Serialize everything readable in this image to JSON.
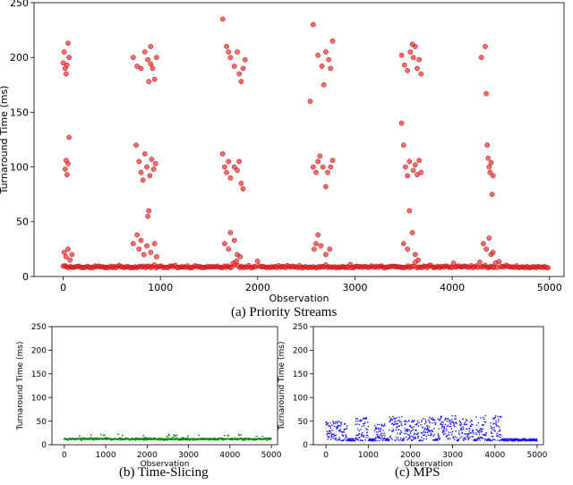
{
  "chart_data": [
    {
      "type": "scatter",
      "caption": "(a) Priority Streams",
      "xlabel": "Observation",
      "ylabel": "Turnaround Time (ms)",
      "xlim": [
        -300,
        5150
      ],
      "ylim": [
        0,
        250
      ],
      "xticks": [
        0,
        1000,
        2000,
        3000,
        4000,
        5000
      ],
      "yticks": [
        0,
        50,
        100,
        150,
        200,
        250
      ],
      "grid": false,
      "color": "#ff0000",
      "marker_style": "filled-circle-with-dark-edge",
      "series": [
        {
          "values_description_points": [
            [
              0,
              195
            ],
            [
              10,
              205
            ],
            [
              20,
              190
            ],
            [
              30,
              185
            ],
            [
              50,
              213
            ],
            [
              60,
              200
            ],
            [
              40,
              193
            ],
            [
              20,
              98
            ],
            [
              30,
              106
            ],
            [
              40,
              93
            ],
            [
              50,
              103
            ],
            [
              60,
              127
            ],
            [
              10,
              22
            ],
            [
              30,
              18
            ],
            [
              50,
              25
            ],
            [
              70,
              15
            ],
            [
              90,
              20
            ],
            [
              720,
              200
            ],
            [
              760,
              192
            ],
            [
              800,
              190
            ],
            [
              840,
              205
            ],
            [
              870,
              198
            ],
            [
              900,
              210
            ],
            [
              920,
              190
            ],
            [
              940,
              180
            ],
            [
              960,
              200
            ],
            [
              880,
              178
            ],
            [
              900,
              194
            ],
            [
              750,
              120
            ],
            [
              780,
              105
            ],
            [
              800,
              95
            ],
            [
              820,
              88
            ],
            [
              840,
              112
            ],
            [
              860,
              100
            ],
            [
              890,
              92
            ],
            [
              910,
              107
            ],
            [
              930,
              98
            ],
            [
              950,
              103
            ],
            [
              880,
              60
            ],
            [
              870,
              55
            ],
            [
              720,
              30
            ],
            [
              760,
              38
            ],
            [
              780,
              25
            ],
            [
              800,
              33
            ],
            [
              830,
              20
            ],
            [
              860,
              28
            ],
            [
              900,
              22
            ],
            [
              940,
              30
            ],
            [
              960,
              18
            ],
            [
              1640,
              235
            ],
            [
              1680,
              210
            ],
            [
              1720,
              200
            ],
            [
              1760,
              192
            ],
            [
              1790,
              205
            ],
            [
              1810,
              185
            ],
            [
              1830,
              178
            ],
            [
              1850,
              190
            ],
            [
              1870,
              198
            ],
            [
              1700,
              205
            ],
            [
              1640,
              112
            ],
            [
              1660,
              100
            ],
            [
              1680,
              95
            ],
            [
              1700,
              105
            ],
            [
              1720,
              90
            ],
            [
              1760,
              100
            ],
            [
              1790,
              97
            ],
            [
              1810,
              105
            ],
            [
              1830,
              85
            ],
            [
              1850,
              80
            ],
            [
              1660,
              30
            ],
            [
              1700,
              25
            ],
            [
              1720,
              40
            ],
            [
              1760,
              33
            ],
            [
              1790,
              20
            ],
            [
              1820,
              18
            ],
            [
              2540,
              160
            ],
            [
              2570,
              230
            ],
            [
              2620,
              202
            ],
            [
              2660,
              192
            ],
            [
              2700,
              205
            ],
            [
              2730,
              198
            ],
            [
              2750,
              190
            ],
            [
              2770,
              215
            ],
            [
              2680,
              175
            ],
            [
              2570,
              100
            ],
            [
              2600,
              95
            ],
            [
              2620,
              105
            ],
            [
              2640,
              110
            ],
            [
              2670,
              100
            ],
            [
              2700,
              82
            ],
            [
              2720,
              95
            ],
            [
              2750,
              100
            ],
            [
              2770,
              106
            ],
            [
              2580,
              25
            ],
            [
              2600,
              30
            ],
            [
              2620,
              38
            ],
            [
              2650,
              28
            ],
            [
              2700,
              20
            ],
            [
              2740,
              25
            ],
            [
              3480,
              202
            ],
            [
              3510,
              193
            ],
            [
              3540,
              188
            ],
            [
              3570,
              205
            ],
            [
              3600,
              200
            ],
            [
              3620,
              210
            ],
            [
              3640,
              190
            ],
            [
              3660,
              198
            ],
            [
              3680,
              185
            ],
            [
              3590,
              212
            ],
            [
              3480,
              140
            ],
            [
              3500,
              120
            ],
            [
              3520,
              100
            ],
            [
              3540,
              92
            ],
            [
              3560,
              105
            ],
            [
              3600,
              97
            ],
            [
              3620,
              102
            ],
            [
              3640,
              93
            ],
            [
              3660,
              106
            ],
            [
              3680,
              95
            ],
            [
              3500,
              30
            ],
            [
              3540,
              25
            ],
            [
              3560,
              60
            ],
            [
              3590,
              40
            ],
            [
              3620,
              20
            ],
            [
              3650,
              15
            ],
            [
              4300,
              200
            ],
            [
              4340,
              210
            ],
            [
              4350,
              167
            ],
            [
              4360,
              120
            ],
            [
              4370,
              108
            ],
            [
              4380,
              100
            ],
            [
              4390,
              95
            ],
            [
              4400,
              104
            ],
            [
              4420,
              92
            ],
            [
              4410,
              75
            ],
            [
              4320,
              30
            ],
            [
              4350,
              25
            ],
            [
              4380,
              35
            ],
            [
              4400,
              20
            ],
            [
              4420,
              22
            ]
          ]
        }
      ]
    },
    {
      "type": "scatter",
      "caption": "(b) Time-Slicing",
      "xlabel": "Observation",
      "ylabel": "Turnaround Time (ms)",
      "xlim": [
        -300,
        5150
      ],
      "ylim": [
        0,
        250
      ],
      "xticks": [
        0,
        1000,
        2000,
        3000,
        4000,
        5000
      ],
      "yticks": [
        0,
        50,
        100,
        150,
        200,
        250
      ],
      "grid": false,
      "color": "#008000",
      "band_description": "dense band between 10 and 22 ms across all observations"
    },
    {
      "type": "scatter",
      "caption": "(c) MPS",
      "xlabel": "Observation",
      "ylabel": "Turnaround Time (ms)",
      "xlim": [
        -300,
        5150
      ],
      "ylim": [
        0,
        250
      ],
      "xticks": [
        0,
        1000,
        2000,
        3000,
        4000,
        5000
      ],
      "yticks": [
        0,
        50,
        100,
        150,
        200,
        250
      ],
      "grid": false,
      "color": "#0000ff",
      "band_description": "clusters up to about 65 ms in bursts, baseline near 10 ms"
    }
  ]
}
